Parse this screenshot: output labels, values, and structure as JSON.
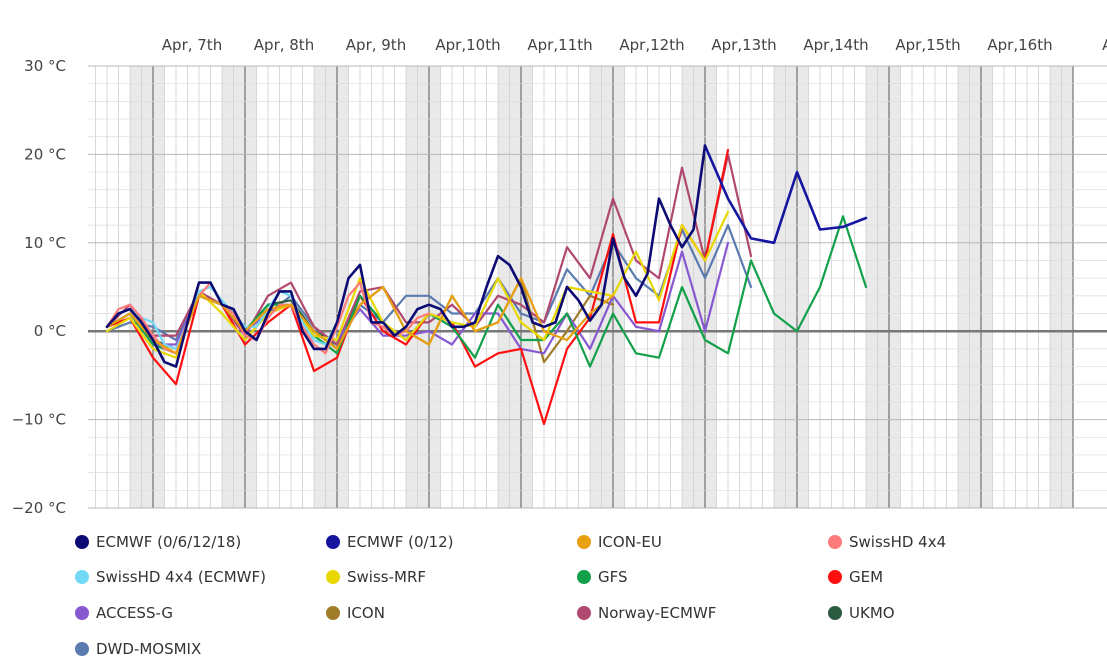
{
  "chart_data": {
    "type": "line",
    "title": "",
    "xlabel": "",
    "ylabel": "",
    "ylim": [
      -20,
      30
    ],
    "xlim": [
      0,
      240
    ],
    "x_tick_labels": [
      "Apr, 7th",
      "Apr, 8th",
      "Apr, 9th",
      "Apr,10th",
      "Apr,11th",
      "Apr,12th",
      "Apr,13th",
      "Apr,14th",
      "Apr,15th",
      "Apr,16th",
      "Ap"
    ],
    "y_ticks": [
      30,
      20,
      10,
      0,
      -10,
      -20
    ],
    "y_tick_labels": [
      "30 °C",
      "20 °C",
      "10 °C",
      "0 °C",
      "−10 °C",
      "−20 °C"
    ],
    "night_bands": [
      [
        -6,
        3
      ],
      [
        18,
        27
      ],
      [
        42,
        51
      ],
      [
        66,
        75
      ],
      [
        90,
        99
      ],
      [
        114,
        123
      ],
      [
        138,
        147
      ],
      [
        162,
        171
      ],
      [
        186,
        195
      ],
      [
        210,
        219
      ],
      [
        234,
        240
      ]
    ],
    "legend_position": "bottom",
    "series": [
      {
        "name": "ECMWF (0/6/12/18)",
        "color": "#0b0b73",
        "x": [
          -12,
          -9,
          -6,
          -3,
          0,
          3,
          6,
          9,
          12,
          15,
          18,
          21,
          24,
          27,
          30,
          33,
          36,
          39,
          42,
          45,
          48,
          51,
          54,
          57,
          60,
          63,
          66,
          69,
          72,
          75,
          78,
          81,
          84,
          87,
          90,
          93,
          96,
          99,
          102,
          105,
          108,
          111,
          114,
          117,
          120,
          123,
          126,
          129,
          132,
          135,
          138,
          141,
          144
        ],
        "y": [
          0.5,
          2,
          2.5,
          1,
          -1,
          -3.5,
          -4,
          1,
          5.5,
          5.5,
          3,
          2.5,
          0,
          -1,
          2,
          4.5,
          4.5,
          0,
          -2,
          -2,
          1,
          6,
          7.5,
          1,
          1,
          -0.5,
          0.5,
          2.5,
          3,
          2.5,
          0.5,
          0.5,
          1,
          5,
          8.5,
          7.5,
          5,
          1,
          0.5,
          1,
          5,
          3.5,
          1.2,
          3,
          10.5,
          6,
          4,
          6.5,
          15,
          12,
          9.5,
          11.5,
          21
        ]
      },
      {
        "name": "ECMWF (0/12)",
        "color": "#1515a0",
        "x": [
          144,
          150,
          156,
          162,
          168,
          174,
          180,
          186
        ],
        "y": [
          21,
          15,
          10.5,
          10,
          18,
          11.5,
          11.8,
          12.8
        ]
      },
      {
        "name": "ICON-EU",
        "color": "#e8a010",
        "x": [
          -12,
          -6,
          0,
          6,
          12,
          18,
          24,
          30,
          36,
          42,
          48,
          54,
          60,
          66,
          72,
          78,
          84,
          90,
          96,
          102,
          108,
          114,
          120
        ],
        "y": [
          0.5,
          2,
          -1,
          -2.5,
          4,
          3,
          0,
          2.5,
          3,
          0,
          -2,
          3,
          5,
          0,
          -1.5,
          4,
          0,
          1,
          6,
          0,
          -1,
          2,
          4
        ]
      },
      {
        "name": "SwissHD 4x4",
        "color": "#ff7a7a",
        "x": [
          -12,
          -9,
          -6,
          -3,
          0,
          3,
          6,
          9,
          12,
          15,
          18,
          21,
          24,
          27,
          30,
          33,
          36,
          39,
          42,
          45,
          48,
          51,
          54,
          57,
          60,
          63,
          66,
          69,
          72
        ],
        "y": [
          0.5,
          2.5,
          3,
          1.5,
          -0.5,
          -2,
          -2.5,
          1,
          4,
          5.5,
          3,
          2,
          -0.5,
          -1,
          1.5,
          3,
          3,
          0.5,
          -1.5,
          -2.5,
          0.5,
          4,
          5.5,
          1,
          0.5,
          -0.5,
          0,
          1.5,
          2
        ]
      },
      {
        "name": "SwissHD 4x4 (ECMWF)",
        "color": "#72d8f5",
        "x": [
          -12,
          -9,
          -6,
          -3,
          0,
          3,
          6,
          9,
          12,
          15,
          18,
          21,
          24,
          27,
          30,
          33,
          36,
          39,
          42,
          45,
          48
        ],
        "y": [
          0.5,
          2,
          2.5,
          1.5,
          1,
          -1.5,
          -2,
          1,
          4.5,
          5,
          3.5,
          2,
          0.5,
          0.5,
          2.5,
          4.5,
          4,
          1,
          -1,
          -1.5,
          1
        ]
      },
      {
        "name": "Swiss-MRF",
        "color": "#e8d800",
        "x": [
          -12,
          -6,
          0,
          6,
          12,
          18,
          24,
          30,
          36,
          42,
          48,
          54,
          60,
          66,
          72,
          78,
          84,
          90,
          96,
          102,
          108,
          114,
          120,
          126,
          132,
          138,
          144,
          150
        ],
        "y": [
          0,
          1.5,
          -2,
          -3,
          4.5,
          2,
          -1,
          2,
          3,
          -0.5,
          -1,
          6,
          1,
          -1,
          2,
          1,
          0.5,
          6,
          1,
          -1,
          5,
          4.5,
          4,
          9,
          3.5,
          12,
          8,
          13.5
        ]
      },
      {
        "name": "GFS",
        "color": "#12a04a",
        "x": [
          -12,
          -6,
          0,
          6,
          12,
          18,
          24,
          30,
          36,
          42,
          48,
          54,
          60,
          66,
          72,
          78,
          84,
          90,
          96,
          102,
          108,
          114,
          120,
          126,
          132,
          138,
          144,
          150,
          156,
          162,
          168,
          174,
          180,
          186
        ],
        "y": [
          0.5,
          2,
          -1.5,
          -2.5,
          4,
          3,
          0,
          3,
          3,
          -0.5,
          -2.5,
          4,
          1,
          -1,
          2,
          0.5,
          -3,
          3,
          -1,
          -1,
          2,
          -4,
          2,
          -2.5,
          -3,
          5,
          -1,
          -2.5,
          8,
          2,
          0,
          5,
          13,
          5
        ]
      },
      {
        "name": "GEM",
        "color": "#ff1010",
        "x": [
          -12,
          -6,
          0,
          6,
          12,
          18,
          24,
          30,
          36,
          42,
          48,
          54,
          60,
          66,
          72,
          78,
          84,
          90,
          96,
          102,
          108,
          114,
          120,
          126,
          132,
          138,
          144,
          150
        ],
        "y": [
          0.5,
          1.5,
          -3,
          -6,
          4,
          3,
          -1.5,
          1,
          3,
          -4.5,
          -3,
          4,
          0,
          -1.5,
          2,
          1,
          -4,
          -2.5,
          -2,
          -10.5,
          -2,
          1.5,
          11,
          1,
          1,
          12,
          8,
          20.5
        ]
      },
      {
        "name": "ACCESS-G",
        "color": "#8858d0",
        "x": [
          -12,
          -6,
          0,
          6,
          12,
          18,
          24,
          30,
          36,
          42,
          48,
          54,
          60,
          66,
          72,
          78,
          84,
          90,
          96,
          102,
          108,
          114,
          120,
          126,
          132,
          138,
          144,
          150
        ],
        "y": [
          0.5,
          2,
          -1.5,
          -1.5,
          4,
          3,
          0,
          2,
          3,
          -0.5,
          -1,
          2.5,
          -0.5,
          -0.5,
          0,
          -1.5,
          2,
          2,
          -2,
          -2.5,
          2,
          -2,
          4,
          0.5,
          0,
          9,
          0,
          10
        ]
      },
      {
        "name": "ICON",
        "color": "#a07c28",
        "x": [
          -12,
          -6,
          0,
          6,
          12,
          18,
          24,
          30,
          36,
          42,
          48,
          54,
          60,
          66,
          72,
          78,
          84,
          90,
          96,
          102,
          108,
          114,
          120
        ],
        "y": [
          0.5,
          2,
          -1,
          -2.5,
          4,
          3,
          0,
          2.5,
          3,
          0,
          -2,
          3,
          5,
          0,
          -1.5,
          4,
          0,
          1,
          6,
          -3.5,
          0,
          4,
          3
        ]
      },
      {
        "name": "Norway-ECMWF",
        "color": "#b04870",
        "x": [
          -12,
          -6,
          0,
          6,
          12,
          18,
          24,
          30,
          36,
          42,
          48,
          54,
          60,
          66,
          72,
          78,
          84,
          90,
          96,
          102,
          108,
          114,
          120,
          126,
          132,
          138,
          144,
          150,
          156
        ],
        "y": [
          0.5,
          3,
          -0.5,
          -0.5,
          4.5,
          3,
          -0.5,
          4,
          5.5,
          0.5,
          -1.5,
          4.5,
          5,
          1,
          1,
          3,
          0.5,
          4,
          3,
          1,
          9.5,
          6,
          15,
          8,
          6,
          18.5,
          8,
          20,
          8.5
        ]
      },
      {
        "name": "UKMO",
        "color": "#2a5a40",
        "x": [
          -12,
          -6,
          0,
          6,
          12,
          18,
          24,
          30,
          36,
          42,
          48,
          54,
          60
        ],
        "y": [
          0.5,
          2,
          -1,
          -2,
          4,
          3,
          0,
          3,
          3.5,
          0,
          -1.5,
          4,
          1
        ]
      },
      {
        "name": "DWD-MOSMIX",
        "color": "#5a7ab0",
        "x": [
          -12,
          -6,
          0,
          6,
          12,
          18,
          24,
          30,
          36,
          42,
          48,
          54,
          60,
          66,
          72,
          78,
          84,
          90,
          96,
          102,
          108,
          114,
          120,
          126,
          132,
          138,
          144,
          150,
          156
        ],
        "y": [
          0,
          1,
          0.5,
          -1,
          4,
          3,
          0,
          2,
          4,
          0.5,
          -2,
          3,
          1,
          4,
          4,
          2,
          2,
          6,
          2,
          1,
          7,
          4,
          10,
          6,
          4,
          11.5,
          6,
          12,
          5
        ]
      }
    ]
  }
}
